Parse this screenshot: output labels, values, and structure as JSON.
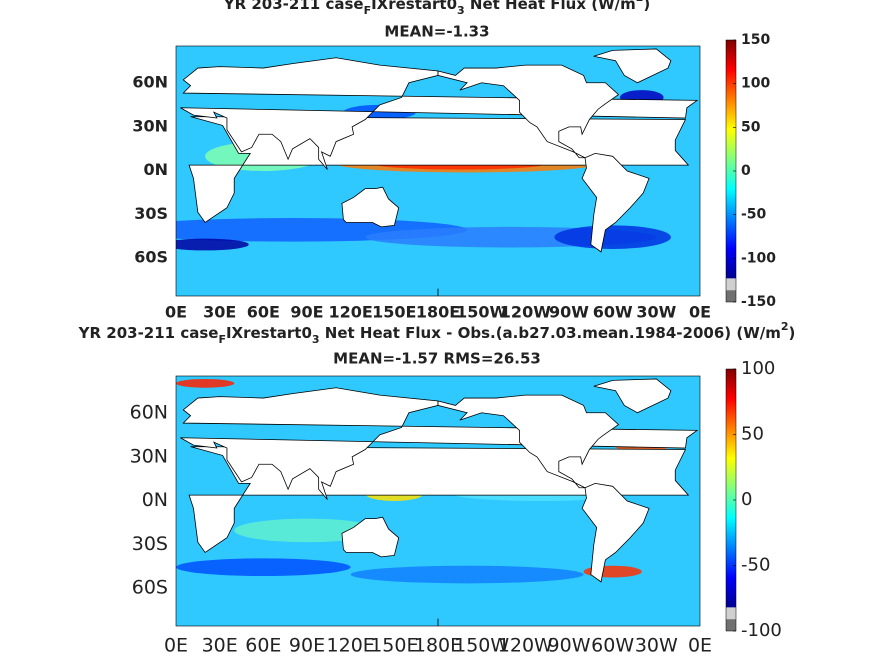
{
  "panels": [
    {
      "title_parts": [
        {
          "text": "YR 203-211 case"
        },
        {
          "text": "F",
          "shift": "sub"
        },
        {
          "text": "IXrestart0"
        },
        {
          "text": "3",
          "shift": "sub"
        },
        {
          "text": "  Net Heat Flux (W/m"
        },
        {
          "text": "2",
          "shift": "super"
        },
        {
          "text": ")"
        }
      ],
      "subtitle": "MEAN=-1.33",
      "lat_labels": [
        "60N",
        "30N",
        "0N",
        "30S",
        "60S"
      ],
      "lon_labels": [
        "0E",
        "30E",
        "60E",
        "90E",
        "120E",
        "150E",
        "180E",
        "150W",
        "120W",
        "90W",
        "60W",
        "30W",
        "0E"
      ],
      "colorbar_ticks": [
        150,
        100,
        50,
        0,
        -50,
        -100,
        -150
      ]
    },
    {
      "title_parts": [
        {
          "text": "YR 203-211 case"
        },
        {
          "text": "F",
          "shift": "sub"
        },
        {
          "text": "IXrestart0"
        },
        {
          "text": "3",
          "shift": "sub"
        },
        {
          "text": "  Net Heat Flux - Obs.(a.b27.03.mean.1984-2006) (W/m"
        },
        {
          "text": "2",
          "shift": "super"
        },
        {
          "text": ")"
        }
      ],
      "subtitle": "MEAN=-1.57 RMS=26.53",
      "lat_labels": [
        "60N",
        "30N",
        "0N",
        "30S",
        "60S"
      ],
      "lon_labels": [
        "0E",
        "30E",
        "60E",
        "90E",
        "120E",
        "150E",
        "180E",
        "150W",
        "120W",
        "90W",
        "60W",
        "30W",
        "0E"
      ],
      "colorbar_ticks": [
        100,
        50,
        0,
        -50,
        -100
      ]
    }
  ]
}
